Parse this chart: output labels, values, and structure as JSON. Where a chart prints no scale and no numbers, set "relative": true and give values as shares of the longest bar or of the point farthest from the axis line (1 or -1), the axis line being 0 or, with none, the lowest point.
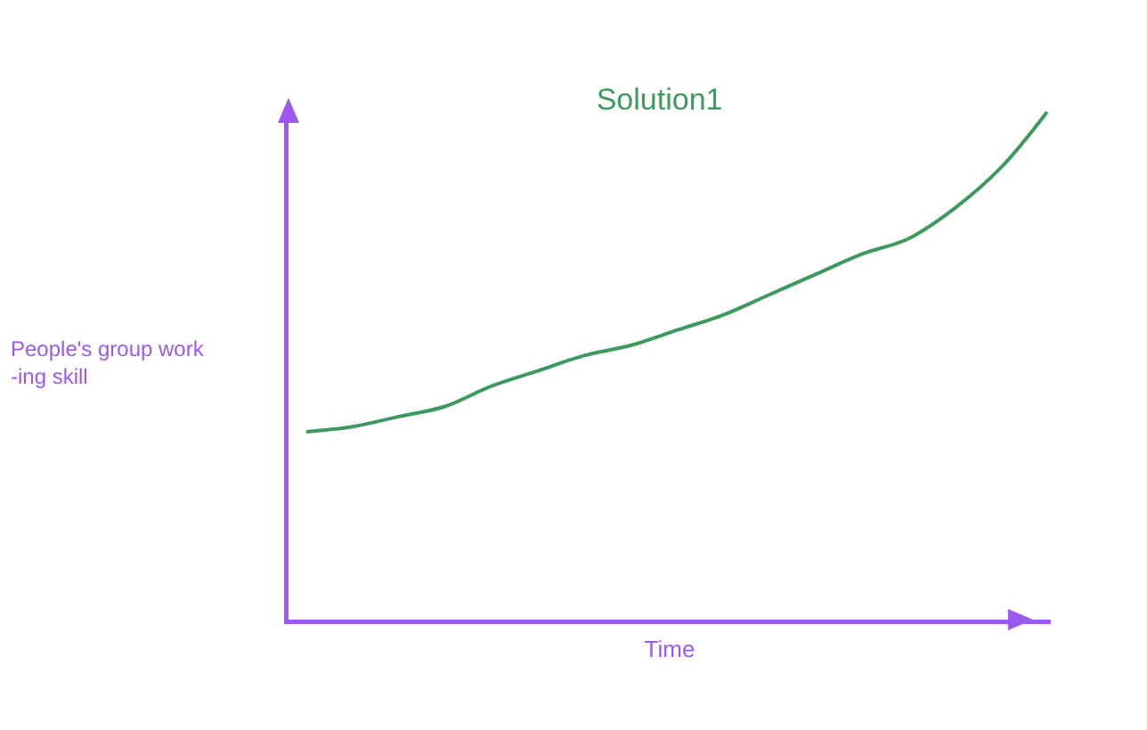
{
  "chart_data": {
    "type": "line",
    "title": "Solution1",
    "xlabel": "Time",
    "ylabel": "People's group work\n-ing skill",
    "relative": true,
    "categories": [
      null,
      null,
      null,
      null,
      null,
      null,
      null,
      null,
      null,
      null,
      null,
      null,
      null,
      null,
      null,
      null,
      null
    ],
    "series": [
      {
        "color": "#3d9a5f",
        "values": [
          0.37,
          0.38,
          0.4,
          0.42,
          0.46,
          0.49,
          0.52,
          0.54,
          0.57,
          0.6,
          0.64,
          0.68,
          0.72,
          0.75,
          0.81,
          0.89,
          1.0
        ]
      }
    ]
  }
}
